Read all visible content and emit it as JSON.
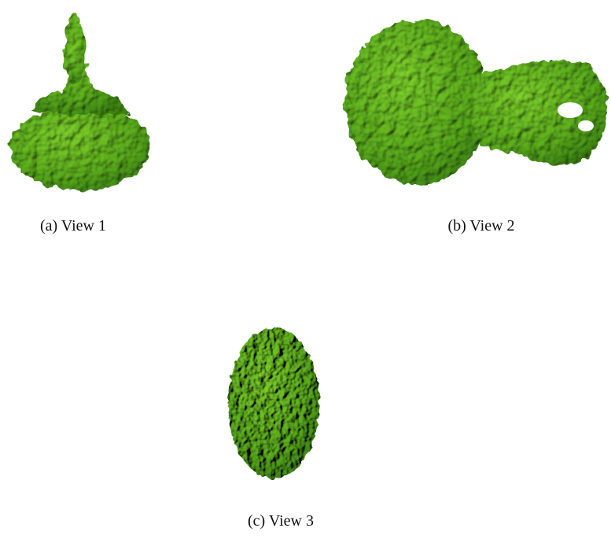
{
  "figure": {
    "panels": [
      {
        "caption": "(a) View 1"
      },
      {
        "caption": "(b) View 2"
      },
      {
        "caption": "(c) View 3"
      }
    ]
  }
}
